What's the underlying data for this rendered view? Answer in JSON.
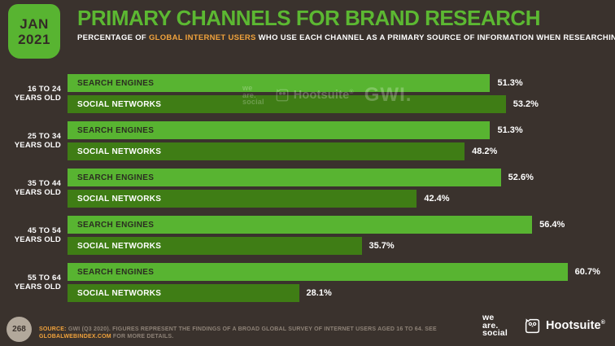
{
  "header": {
    "date_month": "JAN",
    "date_year": "2021",
    "title": "PRIMARY CHANNELS FOR BRAND RESEARCH",
    "subtitle_prefix": "PERCENTAGE OF ",
    "subtitle_highlight": "GLOBAL INTERNET USERS",
    "subtitle_suffix": " WHO USE EACH CHANNEL AS A PRIMARY SOURCE OF INFORMATION WHEN RESEARCHING BRANDS"
  },
  "chart_data": {
    "type": "bar",
    "orientation": "horizontal",
    "value_suffix": "%",
    "xlim": [
      0,
      63.2
    ],
    "grid": false,
    "legend": "labels-inside-bars",
    "categories": [
      {
        "line1": "16 TO 24",
        "line2": "YEARS OLD"
      },
      {
        "line1": "25 TO 34",
        "line2": "YEARS OLD"
      },
      {
        "line1": "35 TO 44",
        "line2": "YEARS OLD"
      },
      {
        "line1": "45 TO 54",
        "line2": "YEARS OLD"
      },
      {
        "line1": "55 TO 64",
        "line2": "YEARS OLD"
      }
    ],
    "series": [
      {
        "name": "SEARCH ENGINES",
        "color": "#58b431",
        "text_color": "#2b2e21",
        "values": [
          51.3,
          51.3,
          52.6,
          56.4,
          60.7
        ]
      },
      {
        "name": "SOCIAL NETWORKS",
        "color": "#3f7d15",
        "text_color": "#ffffff",
        "values": [
          53.2,
          48.2,
          42.4,
          35.7,
          28.1
        ]
      }
    ]
  },
  "watermark": {
    "we_are_social_lines": [
      "we",
      "are.",
      "social"
    ],
    "hootsuite": "Hootsuite",
    "hootsuite_reg": "®",
    "gwi": "GWI."
  },
  "footer": {
    "page_number": "268",
    "source_label": "SOURCE:",
    "source_text": " GWI (Q3 2020). FIGURES REPRESENT THE FINDINGS OF A BROAD GLOBAL SURVEY OF INTERNET USERS AGED 16 TO 64. SEE ",
    "source_link": "GLOBALWEBINDEX.COM",
    "source_text_2": " FOR MORE DETAILS.",
    "we_are_social_lines": [
      "we",
      "are.",
      "social"
    ],
    "hootsuite_label": "Hootsuite",
    "hootsuite_reg": "®"
  },
  "colors": {
    "background": "#3a322d",
    "bright_green": "#58b431",
    "dark_green": "#3f7d15",
    "title_green": "#5cb832",
    "orange_accent": "#f0a23c",
    "footer_text": "#8d8277",
    "page_badge_bg": "#b2a89b"
  }
}
